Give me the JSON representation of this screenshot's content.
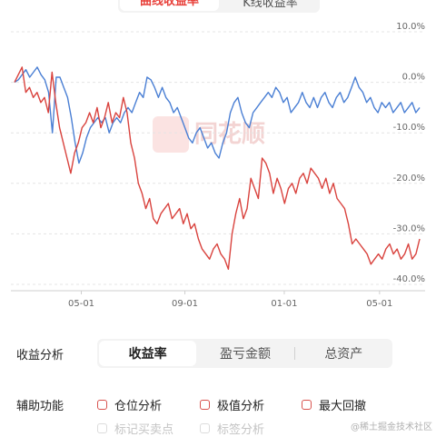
{
  "tabs": {
    "curve": "曲线收益率",
    "kline": "K线收益率"
  },
  "chart_data": {
    "type": "line",
    "y_ticks": [
      "10.0%",
      "0.0%",
      "-10.0%",
      "-20.0%",
      "-30.0%",
      "-40.0%"
    ],
    "y_tick_values": [
      10,
      0,
      -10,
      -20,
      -30,
      -40
    ],
    "ylim": [
      -40,
      10
    ],
    "x_ticks": [
      "05-01",
      "09-01",
      "01-01",
      "05-01"
    ],
    "x_tick_positions": [
      0.17,
      0.42,
      0.66,
      0.89
    ],
    "grid": true,
    "watermark_text": "同花顺",
    "series": [
      {
        "color": "#4a7fd4",
        "values": [
          0,
          0.5,
          1.5,
          2.5,
          1,
          2,
          3,
          1.5,
          0.5,
          -2,
          -10,
          1,
          1,
          -1,
          -3,
          -7,
          -12,
          -16,
          -14,
          -11,
          -9,
          -8,
          -7,
          -8,
          -7,
          -10,
          -8,
          -7,
          -8,
          -6,
          -5,
          -6,
          -4,
          -2,
          -3,
          1,
          0.5,
          -1,
          -3,
          -1,
          -3,
          -4,
          -6,
          -5,
          -7,
          -9,
          -11,
          -12,
          -10,
          -9,
          -11,
          -13,
          -12,
          -14,
          -15,
          -12,
          -10,
          -6,
          -4,
          -3,
          -6,
          -8,
          -9,
          -6,
          -5,
          -4,
          -3,
          -2,
          -3,
          -1,
          -2,
          -4,
          -3,
          -6,
          -5,
          -4,
          -2,
          -4,
          -5,
          -3,
          -5,
          -3,
          -2,
          -4,
          -5,
          -3,
          -2,
          -4,
          -3,
          -1,
          1,
          -1,
          -2,
          -4,
          -3,
          -5,
          -6,
          -4,
          -5,
          -4,
          -6,
          -5,
          -4,
          -6,
          -5,
          -4,
          -6,
          -5
        ]
      },
      {
        "color": "#d9433e",
        "values": [
          0,
          1.5,
          3,
          -2,
          -1,
          -3,
          -2,
          -4,
          -3,
          -6,
          2,
          -4,
          -9,
          -12,
          -15,
          -18,
          -14,
          -12,
          -9,
          -8,
          -6,
          -8,
          -5,
          -9,
          -7,
          -4,
          -8,
          -6,
          -7,
          -3,
          -6,
          -12,
          -15,
          -20,
          -22,
          -25,
          -23,
          -27,
          -28,
          -26,
          -25,
          -24,
          -27,
          -26,
          -25,
          -28,
          -26,
          -29,
          -28,
          -31,
          -33,
          -34,
          -35,
          -33,
          -32,
          -34,
          -35,
          -37,
          -30,
          -26,
          -23,
          -27,
          -25,
          -19,
          -21,
          -23,
          -15,
          -16,
          -18,
          -22,
          -19,
          -21,
          -24,
          -21,
          -20,
          -22,
          -19,
          -18,
          -20,
          -17,
          -18,
          -19,
          -21,
          -19,
          -22,
          -20,
          -23,
          -24,
          -25,
          -28,
          -32,
          -31,
          -32,
          -33,
          -34,
          -36,
          -35,
          -34,
          -35,
          -33,
          -32,
          -34,
          -33,
          -35,
          -34,
          -32,
          -35,
          -34,
          -31
        ]
      }
    ]
  },
  "analysis": {
    "label": "收益分析",
    "options": [
      "收益率",
      "盈亏金额",
      "总资产"
    ]
  },
  "aux": {
    "label": "辅助功能",
    "checks": [
      "仓位分析",
      "极值分析",
      "最大回撤"
    ],
    "disabled_checks": [
      "标记买卖点",
      "标签分析"
    ]
  },
  "footer_watermark": "@稀土掘金技术社区"
}
